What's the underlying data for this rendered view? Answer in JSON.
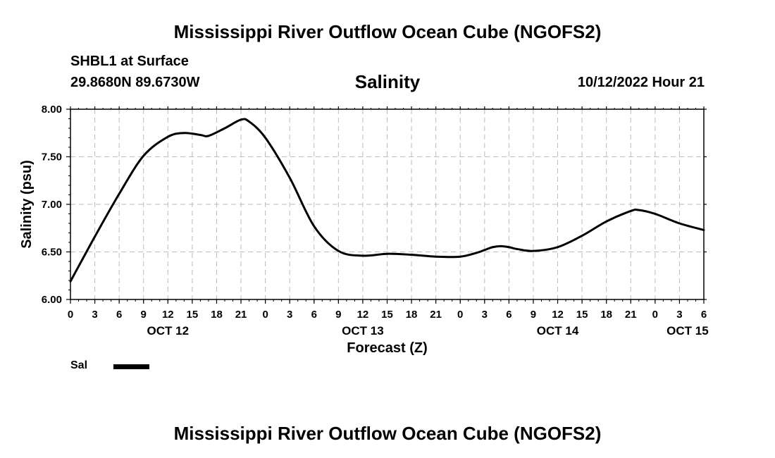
{
  "header": {
    "title": "Mississippi River Outflow Ocean Cube (NGOFS2)",
    "station": "SHBL1 at Surface",
    "coords": "29.8680N  89.6730W",
    "run_time": "10/12/2022 Hour 21"
  },
  "footer": {
    "title": "Mississippi River Outflow Ocean Cube (NGOFS2)"
  },
  "legend": {
    "label": "Sal",
    "color": "#000000"
  },
  "chart_data": {
    "type": "line",
    "title": "Salinity",
    "xlabel": "Forecast (Z)",
    "ylabel": "Salinity (psu)",
    "ylim": [
      6.0,
      8.0
    ],
    "y_ticks": [
      "6.00",
      "6.50",
      "7.00",
      "7.50",
      "8.00"
    ],
    "y_tick_values": [
      6.0,
      6.5,
      7.0,
      7.5,
      8.0
    ],
    "xlim": [
      0,
      78
    ],
    "x_start": "Oct 12 00Z",
    "x_unit": "hours",
    "x_ticks": [
      "0",
      "3",
      "6",
      "9",
      "12",
      "15",
      "18",
      "21",
      "0",
      "3",
      "6",
      "9",
      "12",
      "15",
      "18",
      "21",
      "0",
      "3",
      "6",
      "9",
      "12",
      "15",
      "18",
      "21",
      "0",
      "3",
      "6"
    ],
    "date_labels": [
      {
        "label": "OCT 12",
        "hour": 12
      },
      {
        "label": "OCT 13",
        "hour": 36
      },
      {
        "label": "OCT 14",
        "hour": 60
      },
      {
        "label": "OCT 15",
        "hour": 76
      }
    ],
    "grid": true,
    "series": [
      {
        "name": "Sal",
        "color": "#000000",
        "x": [
          0,
          3,
          6,
          9,
          12,
          14,
          16,
          17,
          19,
          21,
          22,
          24,
          27,
          30,
          33,
          36,
          39,
          42,
          45,
          48,
          50,
          51,
          52,
          53,
          54,
          55,
          57,
          60,
          63,
          66,
          69,
          70,
          72,
          75,
          78
        ],
        "values": [
          6.19,
          6.66,
          7.11,
          7.51,
          7.71,
          7.75,
          7.73,
          7.72,
          7.8,
          7.89,
          7.87,
          7.7,
          7.28,
          6.77,
          6.51,
          6.46,
          6.48,
          6.47,
          6.45,
          6.45,
          6.49,
          6.52,
          6.55,
          6.56,
          6.55,
          6.53,
          6.51,
          6.55,
          6.67,
          6.82,
          6.93,
          6.94,
          6.9,
          6.8,
          6.73
        ]
      }
    ]
  }
}
